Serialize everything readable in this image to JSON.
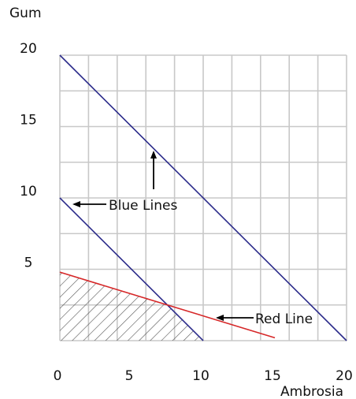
{
  "chart_data": {
    "type": "line",
    "xlabel": "Ambrosia",
    "ylabel": "Gum",
    "xlim": [
      0,
      20
    ],
    "ylim": [
      0,
      20
    ],
    "grid": true,
    "x_ticks": [
      "0",
      "5",
      "10",
      "15",
      "20"
    ],
    "y_ticks": [
      "5",
      "10",
      "15",
      "20"
    ],
    "series": [
      {
        "color": "#2b2b8a",
        "x": [
          0,
          10
        ],
        "y": [
          10,
          0
        ]
      },
      {
        "color": "#2b2b8a",
        "x": [
          0,
          20
        ],
        "y": [
          20,
          0
        ]
      },
      {
        "color": "#d62728",
        "x": [
          0,
          15
        ],
        "y": [
          4.8,
          0.2
        ]
      }
    ],
    "shaded_region": {
      "color": "#555555",
      "vertices": [
        [
          0,
          0
        ],
        [
          0,
          4.8
        ],
        [
          7.5,
          2.5
        ],
        [
          10,
          0
        ]
      ]
    },
    "annotations": [
      {
        "text": "Blue Lines"
      },
      {
        "text": "Red Line"
      }
    ]
  }
}
